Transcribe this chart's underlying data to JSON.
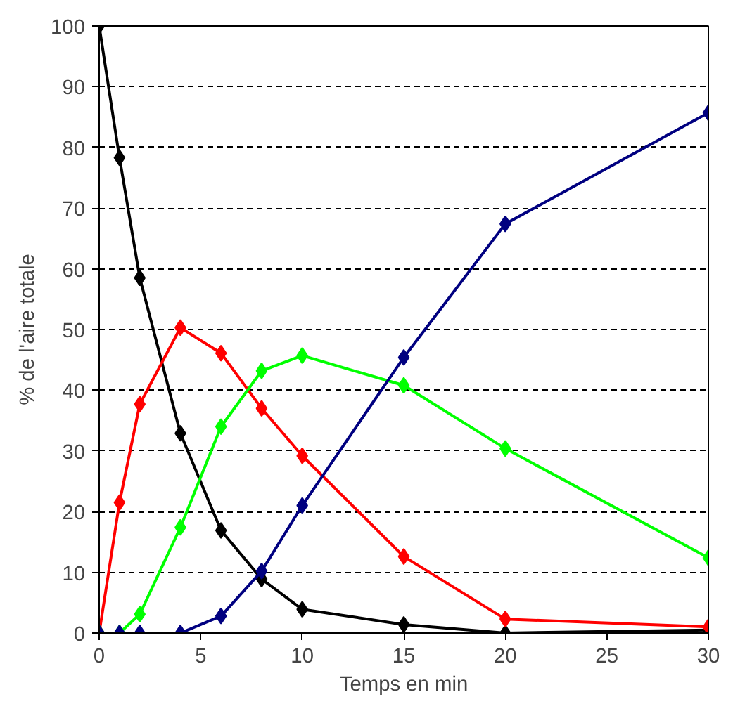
{
  "chart_data": {
    "type": "line",
    "xlabel": "Temps en min",
    "ylabel": "% de l'aire totale",
    "x": [
      0,
      1,
      2,
      4,
      6,
      8,
      10,
      15,
      20,
      30
    ],
    "series": [
      {
        "color": "#000000",
        "values": [
          100,
          78.3,
          58.5,
          32.9,
          16.9,
          8.9,
          3.9,
          1.4,
          0,
          0.5
        ]
      },
      {
        "color": "#ff0000",
        "values": [
          0,
          21.5,
          37.7,
          50.3,
          46.1,
          37,
          29.2,
          12.6,
          2.3,
          1
        ]
      },
      {
        "color": "#00ff00",
        "values": [
          0,
          0,
          3.1,
          17.4,
          34,
          43.2,
          45.7,
          40.8,
          30.4,
          12.4
        ]
      },
      {
        "color": "#000080",
        "values": [
          0,
          0,
          0,
          0,
          2.8,
          10.2,
          21,
          45.4,
          67.4,
          85.7
        ]
      }
    ],
    "xlim": [
      0,
      30
    ],
    "xticks": [
      0,
      5,
      10,
      15,
      20,
      25,
      30
    ],
    "ylim": [
      0,
      100
    ],
    "yticks": [
      0,
      10,
      20,
      30,
      40,
      50,
      60,
      70,
      80,
      90,
      100
    ],
    "grid": "y",
    "marker": "diamond",
    "line_style": "solid"
  }
}
